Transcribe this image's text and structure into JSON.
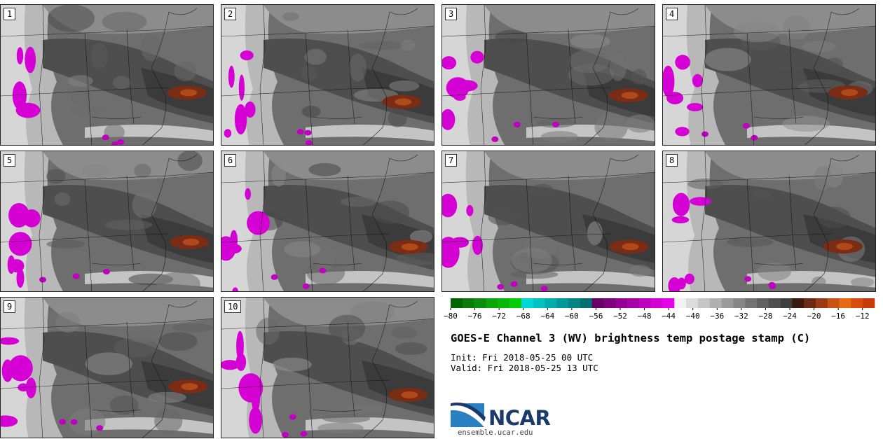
{
  "chart_data": {
    "type": "heatmap",
    "title": "GOES-E Channel 3 (WV) brightness temp postage stamp (C)",
    "init": "Init: Fri 2018-05-25 00 UTC",
    "valid": "Valid: Fri 2018-05-25 13 UTC",
    "panels": [
      "1",
      "2",
      "3",
      "4",
      "5",
      "6",
      "7",
      "8",
      "9",
      "10"
    ],
    "colorbar": {
      "min": -80,
      "max": -10,
      "step": 2,
      "tick_labels": [
        "-80",
        "-76",
        "-72",
        "-68",
        "-64",
        "-60",
        "-56",
        "-52",
        "-48",
        "-44",
        "-40",
        "-36",
        "-32",
        "-28",
        "-24",
        "-20",
        "-16",
        "-12"
      ],
      "colors": [
        "#006400",
        "#0a7a0a",
        "#0b8f0b",
        "#0aa50a",
        "#08b808",
        "#05cc05",
        "#00d8d8",
        "#00c2c2",
        "#00adad",
        "#009898",
        "#008484",
        "#006f6f",
        "#680068",
        "#7d007d",
        "#930093",
        "#a800a8",
        "#be00be",
        "#d400d4",
        "#e800e8",
        "#f2f2f2",
        "#dcdcdc",
        "#c6c6c6",
        "#b0b0b0",
        "#9a9a9a",
        "#868686",
        "#737373",
        "#606060",
        "#4e4e4e",
        "#3e3e3e",
        "#3a1a10",
        "#6b2a12",
        "#9b3a14",
        "#c75214",
        "#e86a10",
        "#d84a10",
        "#c83a08"
      ]
    }
  },
  "branding": {
    "org": "NCAR",
    "url": "ensemble.ucar.edu"
  }
}
